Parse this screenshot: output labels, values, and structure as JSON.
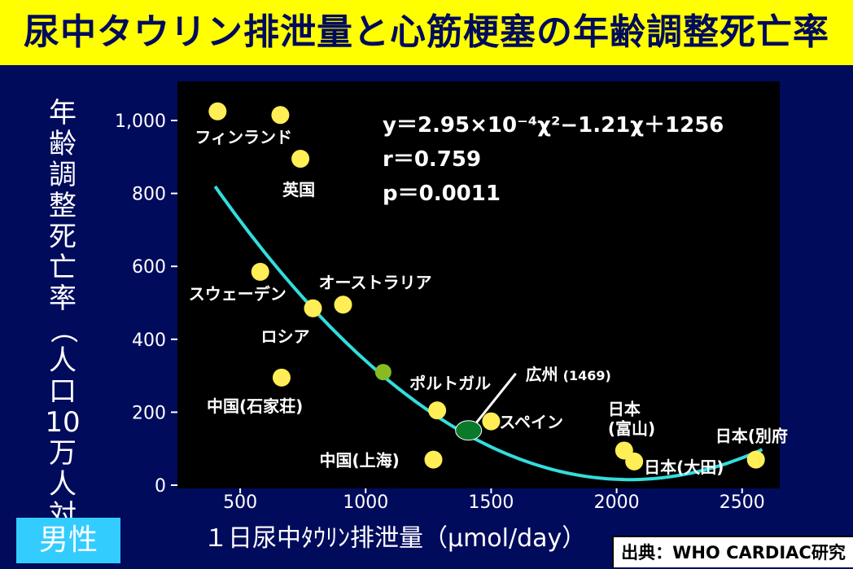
{
  "page": {
    "title": "尿中タウリン排泄量と心筋梗塞の年齢調整死亡率",
    "gender": "男性",
    "source": "出典：WHO CARDIAC研究",
    "colors": {
      "title_bg": "#ffff00",
      "background": "#000b5c",
      "plot_bg": "#000000",
      "points": "#ffee55",
      "curve": "#33dddd",
      "highlight": "#0a7a2a",
      "curve_marker": "#88bb22"
    }
  },
  "chart_data": {
    "type": "scatter",
    "title": "尿中タウリン排泄量と心筋梗塞の年齢調整死亡率",
    "xlabel": "１日尿中ﾀｳﾘﾝ排泄量（μmol/day）",
    "ylabel_chars": [
      "年",
      "齢",
      "調",
      "整",
      "死",
      "亡",
      "率",
      "（",
      "人",
      "口",
      "10",
      "万",
      "人",
      "対",
      "）"
    ],
    "xlim": [
      250,
      2650
    ],
    "ylim": [
      0,
      1100
    ],
    "x_ticks": [
      {
        "v": 500,
        "label": "500"
      },
      {
        "v": 1000,
        "label": "1000"
      },
      {
        "v": 1500,
        "label": "1500"
      },
      {
        "v": 2000,
        "label": "2000"
      },
      {
        "v": 2500,
        "label": "2500"
      }
    ],
    "y_ticks": [
      {
        "v": 0,
        "label": "0"
      },
      {
        "v": 200,
        "label": "200"
      },
      {
        "v": 400,
        "label": "400"
      },
      {
        "v": 600,
        "label": "600"
      },
      {
        "v": 800,
        "label": "800"
      },
      {
        "v": 1000,
        "label": "1,000"
      }
    ],
    "grid": false,
    "points": [
      {
        "x": 410,
        "y": 1025,
        "label": "",
        "series": "country"
      },
      {
        "x": 660,
        "y": 1015,
        "label": "フィンランド",
        "series": "country"
      },
      {
        "x": 740,
        "y": 895,
        "label": "英国",
        "series": "country"
      },
      {
        "x": 580,
        "y": 585,
        "label": "スウェーデン",
        "series": "country"
      },
      {
        "x": 790,
        "y": 485,
        "label": "ロシア",
        "series": "country"
      },
      {
        "x": 910,
        "y": 495,
        "label": "オーストラリア",
        "series": "country"
      },
      {
        "x": 665,
        "y": 295,
        "label": "中国(石家荘)",
        "series": "country"
      },
      {
        "x": 1285,
        "y": 205,
        "label": "ポルトガル",
        "series": "country"
      },
      {
        "x": 1270,
        "y": 70,
        "label": "中国(上海)",
        "series": "country"
      },
      {
        "x": 1500,
        "y": 175,
        "label": "スペイン",
        "series": "country"
      },
      {
        "x": 2030,
        "y": 95,
        "label": "日本\n(富山)",
        "series": "country"
      },
      {
        "x": 2070,
        "y": 65,
        "label": "日本(大田)",
        "series": "country"
      },
      {
        "x": 2555,
        "y": 70,
        "label": "日本(別府",
        "series": "country"
      }
    ],
    "highlight": {
      "x": 1410,
      "y": 150,
      "label": "広州",
      "value_label": "(1469)"
    },
    "curve_marker": {
      "x": 1070,
      "y": 310
    },
    "regression": {
      "a": 0.000295,
      "b": -1.21,
      "c": 1256,
      "x_from": 400,
      "x_to": 2580,
      "equation": "y＝2.95×10⁻⁴χ²−1.21χ＋1256",
      "r": "r＝0.759",
      "p": "p＝0.0011"
    }
  }
}
